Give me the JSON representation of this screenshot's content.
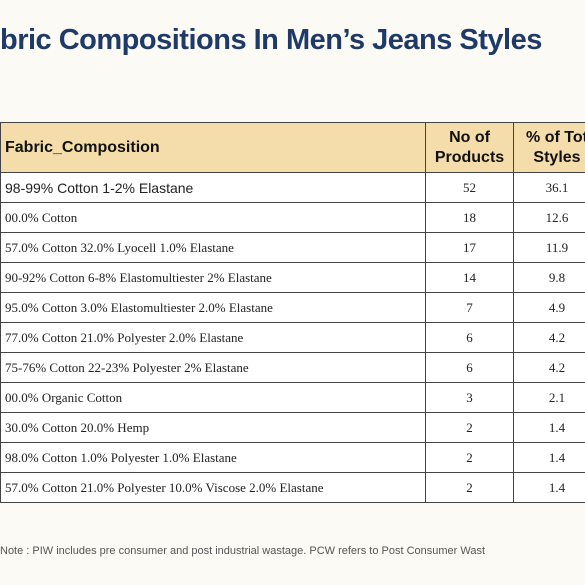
{
  "title": "bric Compositions In Men’s Jeans Styles",
  "table": {
    "header": [
      "Fabric_Composition",
      "No of\nProducts",
      "% of Tot\nStyles"
    ],
    "rows": [
      [
        "98-99% Cotton 1-2% Elastane",
        52,
        36.1
      ],
      [
        "00.0% Cotton",
        18,
        12.6
      ],
      [
        "57.0% Cotton 32.0% Lyocell 1.0% Elastane",
        17,
        11.9
      ],
      [
        "90-92% Cotton 6-8% Elastomultiester 2% Elastane",
        14,
        9.8
      ],
      [
        "95.0% Cotton 3.0% Elastomultiester 2.0% Elastane",
        7,
        4.9
      ],
      [
        "77.0% Cotton 21.0% Polyester 2.0% Elastane",
        6,
        4.2
      ],
      [
        "75-76% Cotton 22-23% Polyester 2% Elastane",
        6,
        4.2
      ],
      [
        "00.0% Organic Cotton",
        3,
        2.1
      ],
      [
        "30.0% Cotton 20.0% Hemp",
        2,
        1.4
      ],
      [
        "98.0% Cotton 1.0% Polyester 1.0% Elastane",
        2,
        1.4
      ],
      [
        "57.0% Cotton 21.0% Polyester 10.0% Viscose 2.0% Elastane",
        2,
        1.4
      ]
    ]
  },
  "note": "Note : PIW includes pre consumer and post industrial wastage. PCW refers to Post Consumer Wast"
}
